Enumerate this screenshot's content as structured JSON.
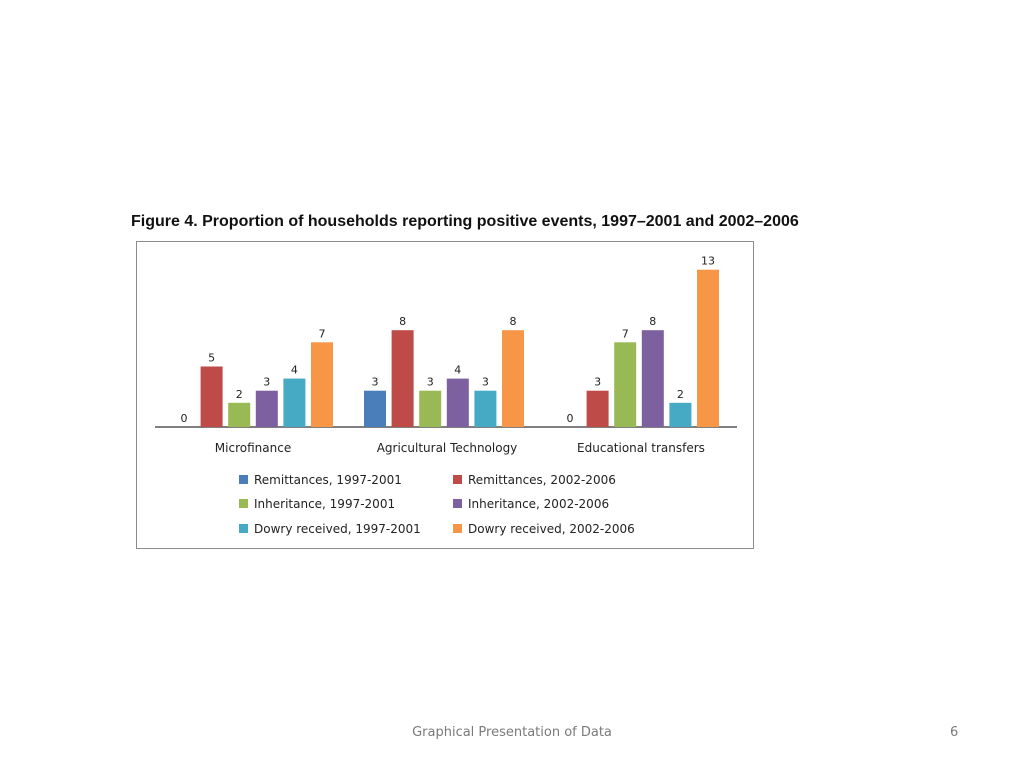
{
  "slide": {
    "footer": "Graphical Presentation of Data",
    "page_number": "6"
  },
  "chart_data": {
    "type": "bar",
    "title": "Figure 4. Proportion of households reporting positive events, 1997–2001 and 2002–2006",
    "categories": [
      "Microfinance",
      "Agricultural Technology",
      "Educational  transfers"
    ],
    "series": [
      {
        "name": "Remittances,  1997-2001",
        "color": "#4a7ebb",
        "values": [
          0,
          3,
          0
        ],
        "labels": [
          "0",
          "3",
          "0"
        ]
      },
      {
        "name": "Remittances,  2002-2006",
        "color": "#be4b48",
        "values": [
          5,
          8,
          3
        ],
        "labels": [
          "5",
          "8",
          "3"
        ]
      },
      {
        "name": "Inheritance, 1997-2001",
        "color": "#98b954",
        "values": [
          2,
          3,
          7
        ],
        "labels": [
          "2",
          "3",
          "7"
        ]
      },
      {
        "name": "Inheritance, 2002-2006",
        "color": "#7d60a0",
        "values": [
          3,
          4,
          8
        ],
        "labels": [
          "3",
          "4",
          "8"
        ]
      },
      {
        "name": "Dowry received, 1997-2001",
        "color": "#46aac5",
        "values": [
          4,
          3,
          2
        ],
        "labels": [
          "4",
          "3",
          "2"
        ]
      },
      {
        "name": "Dowry received, 2002-2006",
        "color": "#f79646",
        "values": [
          7,
          8,
          13
        ],
        "labels": [
          "7",
          "8",
          "13"
        ]
      }
    ],
    "xlabel": "",
    "ylabel": "",
    "ylim": [
      0,
      13
    ],
    "grid": false,
    "legend_position": "bottom"
  }
}
